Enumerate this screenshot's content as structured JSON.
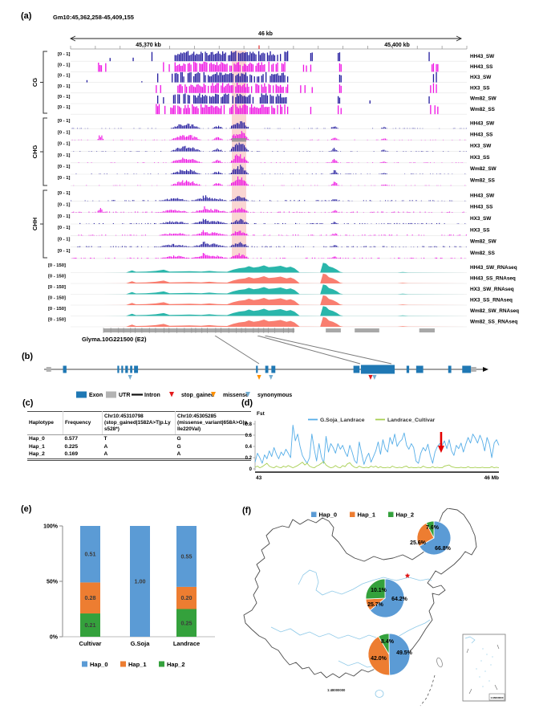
{
  "panel_a": {
    "label": "(a)",
    "region_title": "Gm10:45,362,258-45,409,155",
    "span_label": "46 kb",
    "tick_labels": [
      "45,370 kb",
      "45,400 kb"
    ],
    "methyl_scale": "[0 - 1]",
    "rnaseq_scale": "[0 - 150]",
    "sections": [
      {
        "name": "CG",
        "tracks": [
          "HH43_SW",
          "HH43_SS",
          "HX3_SW",
          "HX3_SS",
          "Wm82_SW",
          "Wm82_SS"
        ]
      },
      {
        "name": "CHG",
        "tracks": [
          "HH43_SW",
          "HH43_SS",
          "HX3_SW",
          "HX3_SS",
          "Wm82_SW",
          "Wm82_SS"
        ]
      },
      {
        "name": "CHH",
        "tracks": [
          "HH43_SW",
          "HH43_SS",
          "HX3_SW",
          "HX3_SS",
          "Wm82_SW",
          "Wm82_SS"
        ]
      }
    ],
    "rnaseq_tracks": [
      "HH43_SW_RNAseq",
      "HH43_SS_RNAseq",
      "HX3_SW_RNAseq",
      "HX3_SS_RNAseq",
      "Wm82_SW_RNAseq",
      "Wm82_SS_RNAseq"
    ],
    "colors": {
      "sw": "#221b9e",
      "ss": "#ef12e3",
      "rna_sw": "#2ab6ab",
      "rna_ss": "#f97e70",
      "highlight": "#f2948b",
      "gene": "#a8a8a8"
    },
    "cg_clusters": [
      [
        0.2,
        0.26,
        0.3
      ],
      [
        0.26,
        0.35,
        0.85
      ],
      [
        0.35,
        0.44,
        0.9
      ],
      [
        0.44,
        0.55,
        0.72
      ],
      [
        0.555,
        0.6,
        0.1
      ],
      [
        0.602,
        0.612,
        0.55
      ],
      [
        0.672,
        0.684,
        0.6
      ],
      [
        0.898,
        0.928,
        0.4
      ]
    ],
    "cg_ss_extra": [
      [
        0.068,
        0.088,
        0.85
      ]
    ],
    "chg_peaks": [
      [
        0.25,
        0.33,
        0.55
      ],
      [
        0.355,
        0.385,
        0.3
      ],
      [
        0.4,
        0.45,
        0.95
      ],
      [
        0.655,
        0.675,
        0.4
      ],
      [
        0.78,
        0.8,
        0.18
      ]
    ],
    "chh_peaks": [
      [
        0.22,
        0.3,
        0.3
      ],
      [
        0.3,
        0.4,
        0.35
      ],
      [
        0.325,
        0.35,
        0.6
      ],
      [
        0.4,
        0.45,
        0.5
      ],
      [
        0.655,
        0.675,
        0.25
      ]
    ],
    "hh43ss_extra": [
      [
        0.066,
        0.082,
        0.6
      ]
    ],
    "rna_profile": [
      [
        0,
        0
      ],
      [
        0.14,
        0.01
      ],
      [
        0.155,
        0.22
      ],
      [
        0.165,
        0.08
      ],
      [
        0.19,
        0.1
      ],
      [
        0.215,
        0.16
      ],
      [
        0.235,
        0.28
      ],
      [
        0.25,
        0.1
      ],
      [
        0.28,
        0.12
      ],
      [
        0.3,
        0.14
      ],
      [
        0.33,
        0.1
      ],
      [
        0.35,
        0.16
      ],
      [
        0.37,
        0.1
      ],
      [
        0.395,
        0.08
      ],
      [
        0.41,
        0.28
      ],
      [
        0.425,
        0.42
      ],
      [
        0.44,
        0.48
      ],
      [
        0.45,
        0.62
      ],
      [
        0.462,
        0.48
      ],
      [
        0.475,
        0.55
      ],
      [
        0.488,
        0.7
      ],
      [
        0.5,
        0.52
      ],
      [
        0.515,
        0.58
      ],
      [
        0.53,
        0.66
      ],
      [
        0.545,
        0.48
      ],
      [
        0.555,
        0.58
      ],
      [
        0.565,
        0.42
      ],
      [
        0.573,
        0.18
      ],
      [
        0.578,
        0.02
      ],
      [
        0.63,
        0.005
      ],
      [
        0.637,
        0.95
      ],
      [
        0.645,
        0.88
      ],
      [
        0.652,
        0.6
      ],
      [
        0.662,
        0.48
      ],
      [
        0.672,
        0.3
      ],
      [
        0.68,
        0.08
      ],
      [
        0.688,
        0.005
      ],
      [
        0.825,
        0.005
      ],
      [
        0.838,
        0.06
      ],
      [
        0.852,
        0.02
      ],
      [
        1,
        0
      ]
    ],
    "gene_segments": [
      [
        0.083,
        0.565
      ],
      [
        0.644,
        0.682
      ],
      [
        0.717,
        0.779
      ],
      [
        0.88,
        0.919
      ]
    ]
  },
  "panel_b": {
    "label": "(b)",
    "gene_name": "Glyma.10G221500 (E2)",
    "colors": {
      "exon": "#1f78b4",
      "utr": "#b3b3b3",
      "intron": "#111111",
      "stop_gained": "#e31a1c",
      "missense": "#ff9100",
      "synonymous": "#74add1"
    },
    "legend": [
      {
        "label": "Exon",
        "type": "box",
        "color": "#1f78b4"
      },
      {
        "label": "UTR",
        "type": "box",
        "color": "#b3b3b3"
      },
      {
        "label": "Intron",
        "type": "line",
        "color": "#111111"
      },
      {
        "label": "stop_gained",
        "type": "tri",
        "color": "#e31a1c"
      },
      {
        "label": "missense",
        "type": "tri",
        "color": "#ff9100"
      },
      {
        "label": "synonymous",
        "type": "tri",
        "color": "#74add1"
      }
    ],
    "features": [
      {
        "t": "utr",
        "s": 0.005,
        "e": 0.016
      },
      {
        "t": "exon",
        "s": 0.043,
        "e": 0.051
      },
      {
        "t": "exon",
        "s": 0.167,
        "e": 0.171
      },
      {
        "t": "exon",
        "s": 0.176,
        "e": 0.18
      },
      {
        "t": "exon",
        "s": 0.185,
        "e": 0.191
      },
      {
        "t": "exon",
        "s": 0.196,
        "e": 0.201
      },
      {
        "t": "exon",
        "s": 0.205,
        "e": 0.214
      },
      {
        "t": "exon",
        "s": 0.483,
        "e": 0.487
      },
      {
        "t": "exon",
        "s": 0.504,
        "e": 0.511
      },
      {
        "t": "exon",
        "s": 0.518,
        "e": 0.527
      },
      {
        "t": "exon",
        "s": 0.705,
        "e": 0.719
      },
      {
        "t": "exonL",
        "s": 0.722,
        "e": 0.799
      },
      {
        "t": "exon",
        "s": 0.826,
        "e": 0.832
      },
      {
        "t": "exon",
        "s": 0.848,
        "e": 0.864
      },
      {
        "t": "exon",
        "s": 0.921,
        "e": 0.928
      },
      {
        "t": "exon",
        "s": 0.953,
        "e": 0.973
      },
      {
        "t": "utr",
        "s": 0.973,
        "e": 0.985
      }
    ],
    "markers": [
      {
        "type": "synonymous",
        "f": 0.196
      },
      {
        "type": "missense",
        "f": 0.49
      },
      {
        "type": "synonymous",
        "f": 0.517
      },
      {
        "type": "stop_gained",
        "f": 0.744
      },
      {
        "type": "synonymous",
        "f": 0.753
      }
    ]
  },
  "panel_c": {
    "label": "(c)",
    "headers": [
      "Haplotype",
      "Frequency",
      "Chr10:45310798 (stop_gained|1582A>T|p.Lys528*)",
      "Chr10:45305285 (missense_variant|658A>G|p.Ile220Val)"
    ],
    "rows": [
      [
        "Hap_0",
        "0.577",
        "T",
        "G"
      ],
      [
        "Hap_1",
        "0.225",
        "A",
        "G"
      ],
      [
        "Hap_2",
        "0.169",
        "A",
        "A"
      ]
    ]
  },
  "panel_d": {
    "label": "(d)",
    "axis_title": "Fst",
    "x_start_label": "43",
    "x_end_label": "46 Mb",
    "y_tick_labels": [
      "0.8",
      "0.6",
      "0.4",
      "0.2",
      "0"
    ],
    "legend": [
      {
        "label": "G.Soja_Landrace",
        "color": "#56aee8"
      },
      {
        "label": "Landrace_Cultivar",
        "color": "#a8cf52"
      }
    ],
    "chart_data": {
      "type": "line",
      "xlabel_range": [
        43,
        46
      ],
      "ylim": [
        0,
        0.8
      ],
      "arrow_x_frac": 0.763,
      "series": [
        {
          "name": "G.Soja_Landrace",
          "color": "#56aee8",
          "values": [
            0.12,
            0.28,
            0.2,
            0.1,
            0.25,
            0.18,
            0.32,
            0.22,
            0.38,
            0.26,
            0.18,
            0.3,
            0.24,
            0.35,
            0.28,
            0.2,
            0.78,
            0.5,
            0.62,
            0.4,
            0.24,
            0.16,
            0.1,
            0.2,
            0.62,
            0.35,
            0.14,
            0.45,
            0.22,
            0.1,
            0.58,
            0.3,
            0.45,
            0.38,
            0.28,
            0.45,
            0.35,
            0.42,
            0.3,
            0.22,
            0.42,
            0.3,
            0.15,
            0.1,
            0.48,
            0.28,
            0.08,
            0.2,
            0.28,
            0.12,
            0.22,
            0.32,
            0.48,
            0.26,
            0.52,
            0.36,
            0.3,
            0.56,
            0.44,
            0.62,
            0.4,
            0.48,
            0.52,
            0.64,
            0.42,
            0.35,
            0.45,
            0.38,
            0.14,
            0.1,
            0.28,
            0.38,
            0.32,
            0.44,
            0.24,
            0.1,
            0.3,
            0.4,
            0.45,
            0.42,
            0.5,
            0.36,
            0.52,
            0.32,
            0.24,
            0.42,
            0.36,
            0.46,
            0.3,
            0.44,
            0.56,
            0.46,
            0.62,
            0.55,
            0.46,
            0.6,
            0.5,
            0.32,
            0.56,
            0.44,
            0.2,
            0.46,
            0.52,
            0.42
          ]
        },
        {
          "name": "Landrace_Cultivar",
          "color": "#a8cf52",
          "values": [
            0.03,
            0.05,
            0.02,
            0.04,
            0.07,
            0.1,
            0.05,
            0.03,
            0.02,
            0.05,
            0.03,
            0.02,
            0.05,
            0.03,
            0.06,
            0.04,
            0.02,
            0.04,
            0.06,
            0.09,
            0.12,
            0.07,
            0.1,
            0.05,
            0.03,
            0.02,
            0.05,
            0.07,
            0.1,
            0.13,
            0.07,
            0.04,
            0.02,
            0.03,
            0.06,
            0.03,
            0.02,
            0.06,
            0.04,
            0.09,
            0.11,
            0.06,
            0.03,
            0.02,
            0.05,
            0.03,
            0.02,
            0.03,
            0.02,
            0.05,
            0.03,
            0.05,
            0.02,
            0.04,
            0.02,
            0.02,
            0.03,
            0.02,
            0.05,
            0.03,
            0.02,
            0.03,
            0.02,
            0.04,
            0.05,
            0.02,
            0.03,
            0.02,
            0.02,
            0.03,
            0.02,
            0.05,
            0.03,
            0.02,
            0.02,
            0.04,
            0.02,
            0.03,
            0.02,
            0.02,
            0.05,
            0.06,
            0.07,
            0.04,
            0.03,
            0.02,
            0.02,
            0.03,
            0.02,
            0.02,
            0.04,
            0.02,
            0.02,
            0.03,
            0.02,
            0.02,
            0.03,
            0.02,
            0.02,
            0.02,
            0.04,
            0.02,
            0.03,
            0.02
          ]
        }
      ]
    }
  },
  "panel_e": {
    "label": "(e)",
    "y_tick_labels": [
      "100%",
      "50%",
      "0%"
    ],
    "chart_data": {
      "type": "bar",
      "stacked": true,
      "categories": [
        "Cultivar",
        "G.Soja",
        "Landrace"
      ],
      "series": [
        {
          "name": "Hap_0",
          "color": "#5b9bd5",
          "values": [
            0.51,
            1.0,
            0.55
          ],
          "value_labels": [
            "0.51",
            "1.00",
            "0.55"
          ]
        },
        {
          "name": "Hap_1",
          "color": "#ed7d31",
          "values": [
            0.28,
            0.0,
            0.2
          ],
          "value_labels": [
            "0.28",
            "",
            "0.20"
          ]
        },
        {
          "name": "Hap_2",
          "color": "#34a13c",
          "values": [
            0.21,
            0.0,
            0.25
          ],
          "value_labels": [
            "0.21",
            "",
            "0.25"
          ]
        }
      ],
      "ylim_percent": [
        0,
        100
      ]
    },
    "legend": [
      {
        "label": "Hap_0",
        "color": "#5b9bd5"
      },
      {
        "label": "Hap_1",
        "color": "#ed7d31"
      },
      {
        "label": "Hap_2",
        "color": "#34a13c"
      }
    ]
  },
  "panel_f": {
    "label": "(f)",
    "legend": [
      {
        "label": "Hap_0",
        "color": "#5b9bd5"
      },
      {
        "label": "Hap_1",
        "color": "#ed7d31"
      },
      {
        "label": "Hap_2",
        "color": "#34a13c"
      }
    ],
    "chart_data": {
      "type": "pie",
      "pies": [
        {
          "name": "northeast-pie",
          "slices": [
            "Hap_0",
            "Hap_1",
            "Hap_2"
          ],
          "values": [
            66.8,
            25.6,
            7.6
          ],
          "labels": [
            "66.8%",
            "25.6%",
            "7.6%"
          ]
        },
        {
          "name": "huanghuai-pie",
          "slices": [
            "Hap_0",
            "Hap_1",
            "Hap_2"
          ],
          "values": [
            64.2,
            10.1,
            25.7
          ],
          "labels": [
            "64.2%",
            "10.1%",
            "25.7%"
          ]
        },
        {
          "name": "southern-pie",
          "slices": [
            "Hap_0",
            "Hap_1",
            "Hap_2"
          ],
          "values": [
            49.5,
            42.0,
            8.4
          ],
          "labels": [
            "49.5%",
            "42.0%",
            "8.4%"
          ]
        }
      ]
    },
    "map_scale": "1:48000000",
    "inset_scale": "1:96000000",
    "colors": {
      "outline": "#4a4a4a",
      "river": "#8ec9e8",
      "star": "#e01010"
    }
  }
}
